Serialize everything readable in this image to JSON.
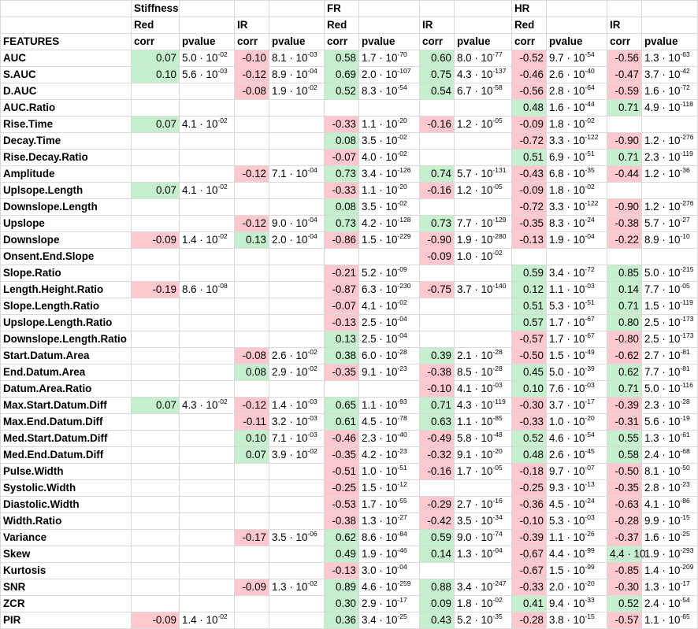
{
  "header": {
    "row1": [
      "",
      "Stiffness",
      "",
      "",
      "",
      "FR",
      "",
      "",
      "",
      "HR",
      "",
      "",
      ""
    ],
    "row2": [
      "",
      "Red",
      "",
      "IR",
      "",
      "Red",
      "",
      "IR",
      "",
      "Red",
      "",
      "IR",
      ""
    ],
    "row3": [
      "FEATURES",
      "corr",
      "pvalue",
      "corr",
      "pvalue",
      "corr",
      "pvalue",
      "corr",
      "pvalue",
      "corr",
      "pvalue",
      "corr",
      "pvalue"
    ]
  },
  "colors": {
    "positive_fill": "#c6efce",
    "negative_fill": "#ffc7ce",
    "grid": "#d9d9d9"
  },
  "rows": [
    {
      "feature": "AUC",
      "cells": [
        [
          "0.07",
          "5.0",
          "-02"
        ],
        [
          "-0.10",
          "8.1",
          "-03"
        ],
        [
          "0.58",
          "1.7",
          "-70"
        ],
        [
          "0.60",
          "8.0",
          "-77"
        ],
        [
          "-0.52",
          "9.7",
          "-54"
        ],
        [
          "-0.56",
          "1.3",
          "-63"
        ]
      ]
    },
    {
      "feature": "S.AUC",
      "cells": [
        [
          "0.10",
          "5.6",
          "-03"
        ],
        [
          "-0.12",
          "8.9",
          "-04"
        ],
        [
          "0.69",
          "2.0",
          "-107"
        ],
        [
          "0.75",
          "4.3",
          "-137"
        ],
        [
          "-0.46",
          "2.6",
          "-40"
        ],
        [
          "-0.47",
          "3.7",
          "-42"
        ]
      ]
    },
    {
      "feature": "D.AUC",
      "cells": [
        null,
        [
          "-0.08",
          "1.9",
          "-02"
        ],
        [
          "0.52",
          "8.3",
          "-54"
        ],
        [
          "0.54",
          "6.7",
          "-58"
        ],
        [
          "-0.56",
          "2.8",
          "-64"
        ],
        [
          "-0.59",
          "1.6",
          "-72"
        ]
      ]
    },
    {
      "feature": "AUC.Ratio",
      "cells": [
        null,
        null,
        null,
        null,
        [
          "0.48",
          "1.6",
          "-44"
        ],
        [
          "0.71",
          "4.9",
          "-118"
        ]
      ]
    },
    {
      "feature": "Rise.Time",
      "cells": [
        [
          "0.07",
          "4.1",
          "-02"
        ],
        null,
        [
          "-0.33",
          "1.1",
          "-20"
        ],
        [
          "-0.16",
          "1.2",
          "-05"
        ],
        [
          "-0.09",
          "1.8",
          "-02"
        ],
        null
      ]
    },
    {
      "feature": "Decay.Time",
      "cells": [
        null,
        null,
        [
          "0.08",
          "3.5",
          "-02"
        ],
        null,
        [
          "-0.72",
          "3.3",
          "-122"
        ],
        [
          "-0.90",
          "1.2",
          "-276"
        ]
      ]
    },
    {
      "feature": "Rise.Decay.Ratio",
      "cells": [
        null,
        null,
        [
          "-0.07",
          "4.0",
          "-02"
        ],
        null,
        [
          "0.51",
          "6.9",
          "-51"
        ],
        [
          "0.71",
          "2.3",
          "-119"
        ]
      ]
    },
    {
      "feature": "Amplitude",
      "cells": [
        null,
        [
          "-0.12",
          "7.1",
          "-04"
        ],
        [
          "0.73",
          "3.4",
          "-126"
        ],
        [
          "0.74",
          "5.7",
          "-131"
        ],
        [
          "-0.43",
          "6.8",
          "-35"
        ],
        [
          "-0.44",
          "1.2",
          "-36"
        ]
      ]
    },
    {
      "feature": "Uplsope.Length",
      "cells": [
        [
          "0.07",
          "4.1",
          "-02"
        ],
        null,
        [
          "-0.33",
          "1.1",
          "-20"
        ],
        [
          "-0.16",
          "1.2",
          "-05"
        ],
        [
          "-0.09",
          "1.8",
          "-02"
        ],
        null
      ]
    },
    {
      "feature": "Downslope.Length",
      "cells": [
        null,
        null,
        [
          "0.08",
          "3.5",
          "-02"
        ],
        null,
        [
          "-0.72",
          "3.3",
          "-122"
        ],
        [
          "-0.90",
          "1.2",
          "-276"
        ]
      ]
    },
    {
      "feature": "Upslope",
      "cells": [
        null,
        [
          "-0.12",
          "9.0",
          "-04"
        ],
        [
          "0.73",
          "4.2",
          "-128"
        ],
        [
          "0.73",
          "7.7",
          "-129"
        ],
        [
          "-0.35",
          "8.3",
          "-24"
        ],
        [
          "-0.38",
          "5.7",
          "-27"
        ]
      ]
    },
    {
      "feature": "Downslope",
      "cells": [
        [
          "-0.09",
          "1.4",
          "-02"
        ],
        [
          "0.13",
          "2.0",
          "-04"
        ],
        [
          "-0.86",
          "1.5",
          "-229"
        ],
        [
          "-0.90",
          "1.9",
          "-280"
        ],
        [
          "-0.13",
          "1.9",
          "-04"
        ],
        [
          "-0.22",
          "8.9",
          "-10"
        ]
      ]
    },
    {
      "feature": "Onsent.End.Slope",
      "cells": [
        null,
        null,
        null,
        [
          "-0.09",
          "1.0",
          "-02"
        ],
        null,
        null
      ]
    },
    {
      "feature": "Slope.Ratio",
      "cells": [
        null,
        null,
        [
          "-0.21",
          "5.2",
          "-09"
        ],
        null,
        [
          "0.59",
          "3.4",
          "-72"
        ],
        [
          "0.85",
          "5.0",
          "-215"
        ]
      ]
    },
    {
      "feature": "Length.Height.Ratio",
      "cells": [
        [
          "-0.19",
          "8.6",
          "-08"
        ],
        null,
        [
          "-0.87",
          "6.3",
          "-230"
        ],
        [
          "-0.75",
          "3.7",
          "-140"
        ],
        [
          "0.12",
          "1.1",
          "-03"
        ],
        [
          "0.14",
          "7.7",
          "-05"
        ]
      ]
    },
    {
      "feature": "Slope.Length.Ratio",
      "cells": [
        null,
        null,
        [
          "-0.07",
          "4.1",
          "-02"
        ],
        null,
        [
          "0.51",
          "5.3",
          "-51"
        ],
        [
          "0.71",
          "1.5",
          "-119"
        ]
      ]
    },
    {
      "feature": "Upslope.Length.Ratio",
      "cells": [
        null,
        null,
        [
          "-0.13",
          "2.5",
          "-04"
        ],
        null,
        [
          "0.57",
          "1.7",
          "-67"
        ],
        [
          "0.80",
          "2.5",
          "-173"
        ]
      ]
    },
    {
      "feature": "Downslope.Length.Ratio",
      "cells": [
        null,
        null,
        [
          "0.13",
          "2.5",
          "-04"
        ],
        null,
        [
          "-0.57",
          "1.7",
          "-67"
        ],
        [
          "-0.80",
          "2.5",
          "-173"
        ]
      ]
    },
    {
      "feature": "Start.Datum.Area",
      "cells": [
        null,
        [
          "-0.08",
          "2.6",
          "-02"
        ],
        [
          "0.38",
          "6.0",
          "-28"
        ],
        [
          "0.39",
          "2.1",
          "-28"
        ],
        [
          "-0.50",
          "1.5",
          "-49"
        ],
        [
          "-0.62",
          "2.7",
          "-81"
        ]
      ]
    },
    {
      "feature": "End.Datum.Area",
      "cells": [
        null,
        [
          "0.08",
          "2.9",
          "-02"
        ],
        [
          "-0.35",
          "9.1",
          "-23"
        ],
        [
          "-0.38",
          "8.5",
          "-28"
        ],
        [
          "0.45",
          "5.0",
          "-39"
        ],
        [
          "0.62",
          "7.7",
          "-81"
        ]
      ]
    },
    {
      "feature": "Datum.Area.Ratio",
      "cells": [
        null,
        null,
        null,
        [
          "-0.10",
          "4.1",
          "-03"
        ],
        [
          "0.10",
          "7.6",
          "-03"
        ],
        [
          "0.71",
          "5.0",
          "-116"
        ]
      ]
    },
    {
      "feature": "Max.Start.Datum.Diff",
      "cells": [
        [
          "0.07",
          "4.3",
          "-02"
        ],
        [
          "-0.12",
          "1.4",
          "-03"
        ],
        [
          "0.65",
          "1.1",
          "-93"
        ],
        [
          "0.71",
          "4.3",
          "-119"
        ],
        [
          "-0.30",
          "3.7",
          "-17"
        ],
        [
          "-0.39",
          "2.3",
          "-28"
        ]
      ]
    },
    {
      "feature": "Max.End.Datum.Diff",
      "cells": [
        null,
        [
          "-0.11",
          "3.2",
          "-03"
        ],
        [
          "0.61",
          "4.5",
          "-78"
        ],
        [
          "0.63",
          "1.1",
          "-85"
        ],
        [
          "-0.33",
          "1.0",
          "-20"
        ],
        [
          "-0.31",
          "5.6",
          "-19"
        ]
      ]
    },
    {
      "feature": "Med.Start.Datum.Diff",
      "cells": [
        null,
        [
          "0.10",
          "7.1",
          "-03"
        ],
        [
          "-0.46",
          "2.3",
          "-40"
        ],
        [
          "-0.49",
          "5.8",
          "-48"
        ],
        [
          "0.52",
          "4.6",
          "-54"
        ],
        [
          "0.55",
          "1.3",
          "-61"
        ]
      ]
    },
    {
      "feature": "Med.End.Datum.Diff",
      "cells": [
        null,
        [
          "0.07",
          "3.9",
          "-02"
        ],
        [
          "-0.35",
          "4.2",
          "-23"
        ],
        [
          "-0.32",
          "9.1",
          "-20"
        ],
        [
          "0.48",
          "2.6",
          "-45"
        ],
        [
          "0.58",
          "2.4",
          "-68"
        ]
      ]
    },
    {
      "feature": "Pulse.Width",
      "cells": [
        null,
        null,
        [
          "-0.51",
          "1.0",
          "-51"
        ],
        [
          "-0.16",
          "1.7",
          "-05"
        ],
        [
          "-0.18",
          "9.7",
          "-07"
        ],
        [
          "-0.50",
          "8.1",
          "-50"
        ]
      ]
    },
    {
      "feature": "Systolic.Width",
      "cells": [
        null,
        null,
        [
          "-0.25",
          "1.5",
          "-12"
        ],
        null,
        [
          "-0.25",
          "9.3",
          "-13"
        ],
        [
          "-0.35",
          "2.8",
          "-23"
        ]
      ]
    },
    {
      "feature": "Diastolic.Width",
      "cells": [
        null,
        null,
        [
          "-0.53",
          "1.7",
          "-55"
        ],
        [
          "-0.29",
          "2.7",
          "-16"
        ],
        [
          "-0.36",
          "4.5",
          "-24"
        ],
        [
          "-0.63",
          "4.1",
          "-86"
        ]
      ]
    },
    {
      "feature": "Width.Ratio",
      "cells": [
        null,
        null,
        [
          "-0.38",
          "1.3",
          "-27"
        ],
        [
          "-0.42",
          "3.5",
          "-34"
        ],
        [
          "-0.10",
          "5.3",
          "-03"
        ],
        [
          "-0.28",
          "9.9",
          "-15"
        ]
      ]
    },
    {
      "feature": "Variance",
      "cells": [
        null,
        [
          "-0.17",
          "3.5",
          "-06"
        ],
        [
          "0.62",
          "8.6",
          "-84"
        ],
        [
          "0.59",
          "9.0",
          "-74"
        ],
        [
          "-0.39",
          "1.1",
          "-26"
        ],
        [
          "-0.37",
          "1.6",
          "-25"
        ]
      ]
    },
    {
      "feature": "Skew",
      "cells": [
        null,
        null,
        [
          "0.49",
          "1.9",
          "-46"
        ],
        [
          "0.14",
          "1.3",
          "-04"
        ],
        [
          "-0.67",
          "4.4",
          "-99"
        ],
        [
          "4.4 · 10",
          "1.9",
          "-293"
        ]
      ]
    },
    {
      "feature": "Kurtosis",
      "cells": [
        null,
        null,
        [
          "-0.13",
          "3.0",
          "-04"
        ],
        null,
        [
          "-0.67",
          "1.5",
          "-99"
        ],
        [
          "-0.85",
          "1.4",
          "-209"
        ]
      ]
    },
    {
      "feature": "SNR",
      "cells": [
        null,
        [
          "-0.09",
          "1.3",
          "-02"
        ],
        [
          "0.89",
          "4.6",
          "-259"
        ],
        [
          "0.88",
          "3.4",
          "-247"
        ],
        [
          "-0.33",
          "2.0",
          "-20"
        ],
        [
          "-0.30",
          "1.3",
          "-17"
        ]
      ]
    },
    {
      "feature": "ZCR",
      "cells": [
        null,
        null,
        [
          "0.30",
          "2.9",
          "-17"
        ],
        [
          "0.09",
          "1.8",
          "-02"
        ],
        [
          "0.41",
          "9.4",
          "-33"
        ],
        [
          "0.52",
          "2.4",
          "-54"
        ]
      ]
    },
    {
      "feature": "PIR",
      "cells": [
        [
          "-0.09",
          "1.4",
          "-02"
        ],
        null,
        [
          "0.36",
          "3.4",
          "-25"
        ],
        [
          "0.43",
          "5.2",
          "-35"
        ],
        [
          "-0.28",
          "3.8",
          "-15"
        ],
        [
          "-0.57",
          "1.1",
          "-65"
        ]
      ]
    }
  ]
}
